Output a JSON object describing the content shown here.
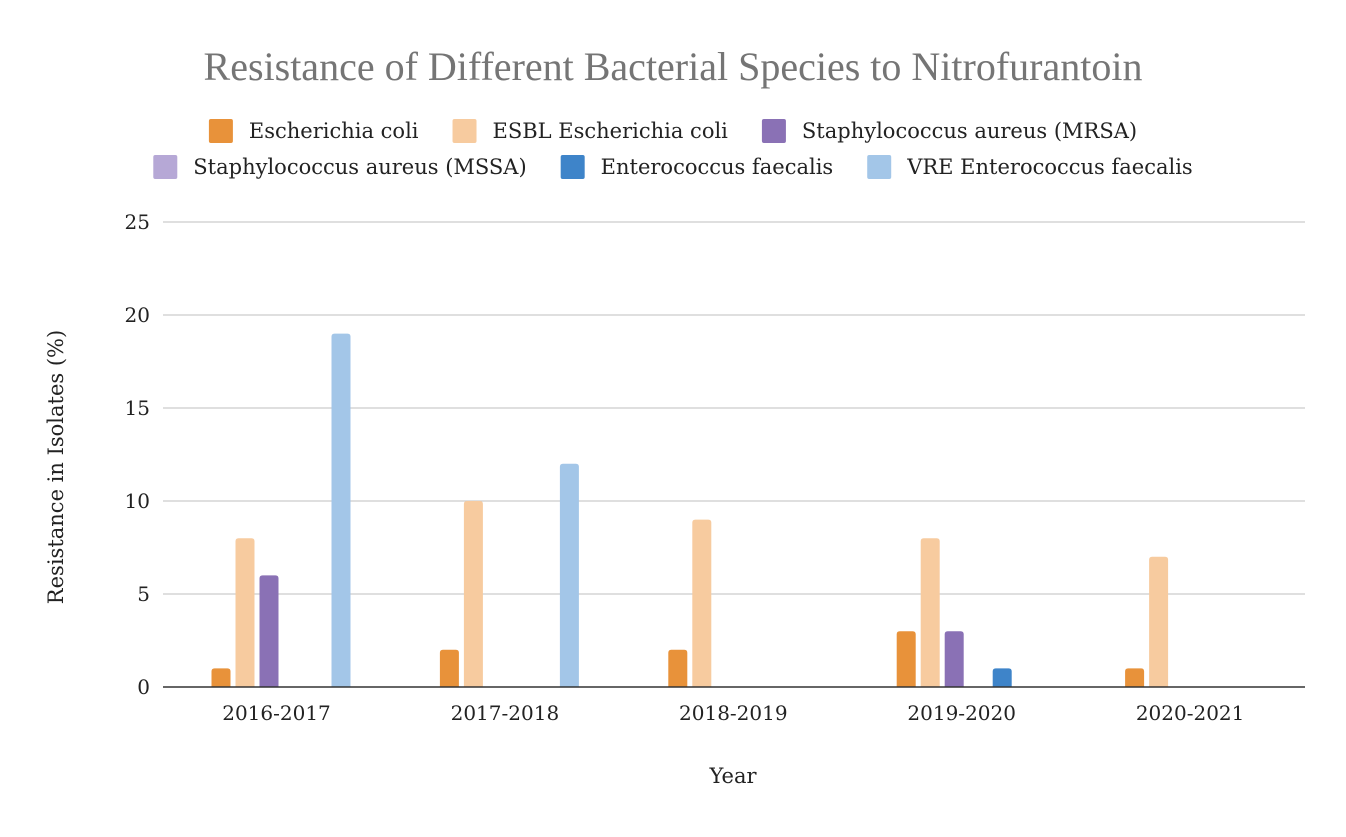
{
  "chart_data": {
    "type": "bar",
    "title": "Resistance of Different Bacterial Species to Nitrofurantoin",
    "xlabel": "Year",
    "ylabel": "Resistance in Isolates (%)",
    "ylim": [
      0,
      25
    ],
    "yticks": [
      0,
      5,
      10,
      15,
      20,
      25
    ],
    "grid": true,
    "legend_position": "top",
    "categories": [
      "2016-2017",
      "2017-2018",
      "2018-2019",
      "2019-2020",
      "2020-2021"
    ],
    "series": [
      {
        "name": "Escherichia coli",
        "color": "#e8923a",
        "values": [
          1,
          2,
          2,
          3,
          1
        ]
      },
      {
        "name": "ESBL Escherichia coli",
        "color": "#f7cb9f",
        "values": [
          8,
          10,
          9,
          8,
          7
        ]
      },
      {
        "name": "Staphylococcus aureus (MRSA)",
        "color": "#8a71b5",
        "values": [
          6,
          0,
          0,
          3,
          0
        ]
      },
      {
        "name": "Staphylococcus aureus (MSSA)",
        "color": "#b6a8d6",
        "values": [
          0,
          0,
          0,
          0,
          0
        ]
      },
      {
        "name": "Enterococcus faecalis",
        "color": "#3e84c9",
        "values": [
          0,
          0,
          0,
          1,
          0
        ]
      },
      {
        "name": "VRE Enterococcus faecalis",
        "color": "#a3c6e8",
        "values": [
          19,
          12,
          0,
          0,
          0
        ]
      }
    ]
  }
}
